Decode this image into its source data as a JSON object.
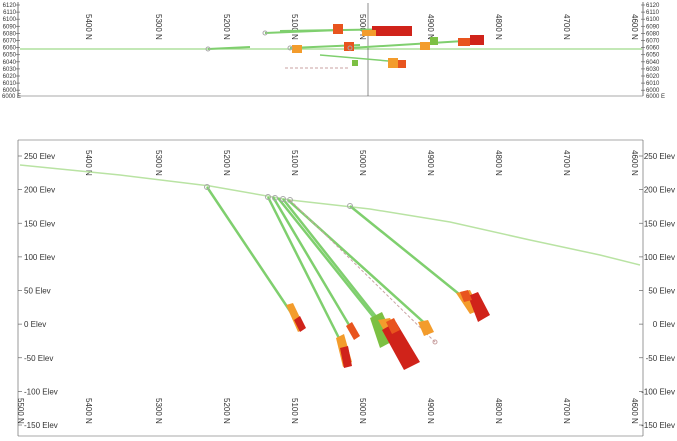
{
  "northing_labels": [
    "5400 N",
    "5300 N",
    "5200 N",
    "5100 N",
    "5000 N",
    "4900 N",
    "4800 N",
    "4700 N",
    "4600 N"
  ],
  "plan_view": {
    "left_axis_labels": [
      "6120",
      "6110",
      "6100",
      "6090",
      "6080",
      "6070",
      "6060",
      "6050",
      "6040",
      "6030",
      "6020",
      "6010",
      "6000"
    ],
    "right_axis_labels": [
      "6120",
      "6110",
      "6100",
      "6090",
      "6080",
      "6070",
      "6060",
      "6050",
      "6040",
      "6030",
      "6020",
      "6010",
      "6000"
    ],
    "bottom_left_label": "6000 E",
    "bottom_right_label": "6000 E"
  },
  "section_view": {
    "elevation_labels": [
      "250 Elev",
      "200 Elev",
      "150 Elev",
      "100 Elev",
      "50 Elev",
      "0 Elev",
      "-50 Elev",
      "-100 Elev",
      "-150 Elev"
    ],
    "elevation_values": [
      250,
      200,
      150,
      100,
      50,
      0,
      -50,
      -100,
      -150
    ],
    "bottom_northing_labels": [
      "5500 N",
      "5400 N",
      "5300 N",
      "5200 N",
      "5100 N",
      "5000 N",
      "4900 N",
      "4800 N",
      "4700 N",
      "4600 N"
    ]
  },
  "colors": {
    "topography": "#b9e3a3",
    "drill_trace": "#7fcf6e",
    "planned_trace": "#c8a0a0",
    "assay_low": "#7cc043",
    "assay_mid": "#f39c2c",
    "assay_high": "#e8541e",
    "assay_max": "#d0231a",
    "collar": "#a8a8a8"
  }
}
